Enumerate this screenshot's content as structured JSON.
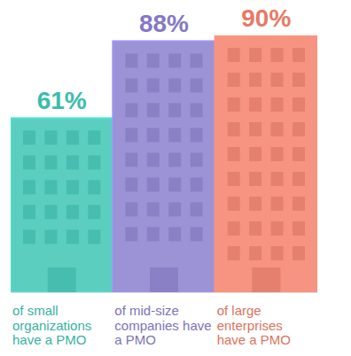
{
  "chart_data": {
    "type": "bar",
    "categories": [
      "of small organizations have a PMO",
      "of mid-size companies have a PMO",
      "of large enterprises have a PMO"
    ],
    "values": [
      61,
      88,
      90
    ],
    "value_labels": [
      "61%",
      "88%",
      "90%"
    ],
    "colors": [
      "#3ec6b5",
      "#8b80d0",
      "#f6806b"
    ],
    "data_labels": true,
    "tick_labels": "x"
  }
}
